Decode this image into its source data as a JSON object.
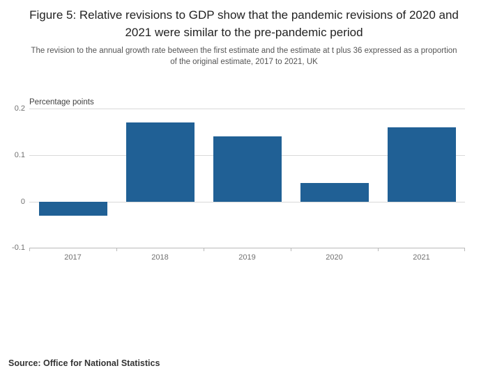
{
  "header": {
    "title": "Figure 5: Relative revisions to GDP show that the pandemic revisions of 2020 and 2021 were similar to the pre-pandemic period",
    "subtitle": "The revision to the annual growth rate between the first estimate and the estimate at t plus 36 expressed as a proportion of the original estimate, 2017 to 2021, UK"
  },
  "chart_data": {
    "type": "bar",
    "categories": [
      "2017",
      "2018",
      "2019",
      "2020",
      "2021"
    ],
    "values": [
      -0.03,
      0.17,
      0.14,
      0.04,
      0.16
    ],
    "title": "",
    "xlabel": "",
    "ylabel": "Percentage points",
    "ylim": [
      -0.1,
      0.2
    ],
    "yticks": [
      {
        "label": "0.2",
        "value": 0.2
      },
      {
        "label": "0.1",
        "value": 0.1
      },
      {
        "label": "0",
        "value": 0
      },
      {
        "label": "-0.1",
        "value": -0.1
      }
    ],
    "bar_color": "#206095",
    "grid": true,
    "legend": "none"
  },
  "footer": {
    "source": "Source: Office for National Statistics"
  }
}
